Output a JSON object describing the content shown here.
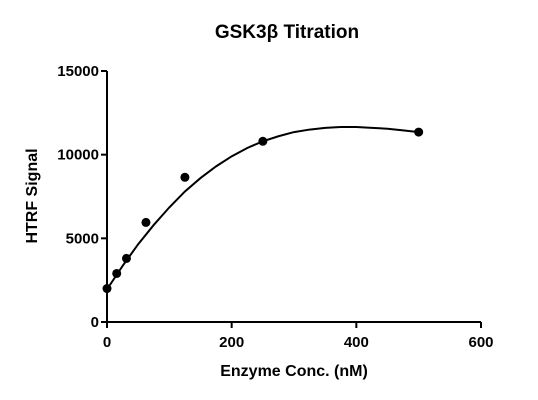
{
  "chart_data": {
    "type": "scatter",
    "title": "GSK3β  Titration",
    "xlabel": "Enzyme Conc. (nM)",
    "ylabel": "HTRF Signal",
    "xlim": [
      0,
      600
    ],
    "ylim": [
      0,
      15000
    ],
    "x_ticks": [
      0,
      200,
      400,
      600
    ],
    "y_ticks": [
      0,
      5000,
      10000,
      15000
    ],
    "x_tick_labels": [
      "0",
      "200",
      "400",
      "600"
    ],
    "y_tick_labels": [
      "0",
      "5000",
      "10000",
      "15000"
    ],
    "grid": false,
    "legend": "none",
    "series": [
      {
        "x": [
          0,
          15.6,
          31.25,
          62.5,
          125,
          250,
          500
        ],
        "y": [
          2000,
          2900,
          3800,
          5950,
          8650,
          10800,
          11350
        ]
      }
    ],
    "fit_curve": {
      "x": [
        0,
        25,
        50,
        75,
        100,
        125,
        150,
        175,
        200,
        225,
        250,
        275,
        300,
        325,
        350,
        375,
        400,
        425,
        450,
        475,
        500
      ],
      "y": [
        1950,
        3350,
        4650,
        5800,
        6850,
        7800,
        8600,
        9300,
        9900,
        10400,
        10800,
        11100,
        11350,
        11500,
        11600,
        11650,
        11650,
        11600,
        11550,
        11450,
        11350
      ]
    },
    "colors": {
      "points": "#000000",
      "curve": "#000000",
      "axes": "#000000"
    }
  }
}
